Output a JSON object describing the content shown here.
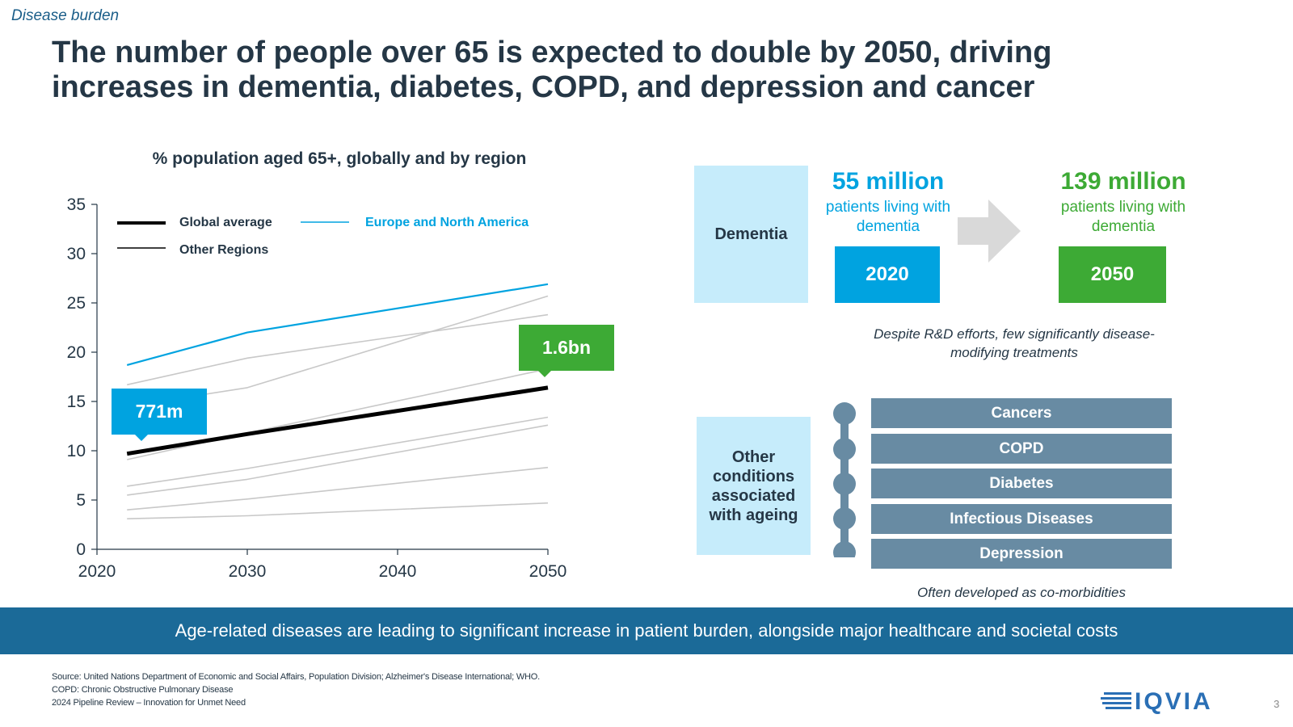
{
  "section_tag": "Disease burden",
  "title": "The number of people over 65 is expected to double by 2050, driving increases in dementia, diabetes, COPD, and depression and cancer",
  "chart_data": {
    "type": "line",
    "title": "% population aged 65+, globally and by region",
    "x": [
      2022,
      2030,
      2050
    ],
    "xticks": [
      "2020",
      "2030",
      "2040",
      "2050"
    ],
    "yticks": [
      "0",
      "5",
      "10",
      "15",
      "20",
      "25",
      "30",
      "35"
    ],
    "xlim": [
      2020,
      2050
    ],
    "ylim": [
      0,
      35
    ],
    "legend": [
      {
        "label": "Global average",
        "color": "#000000"
      },
      {
        "label": "Europe and North America",
        "color": "#00a3e0"
      },
      {
        "label": "Other Regions",
        "color": "#000000"
      }
    ],
    "series": [
      {
        "name": "Europe and North America",
        "color": "#00a3e0",
        "values": [
          18.7,
          22.0,
          26.9
        ]
      },
      {
        "name": "Global average",
        "color": "#000000",
        "values": [
          9.7,
          11.7,
          16.4
        ]
      },
      {
        "color": "#c8c8c8",
        "values": [
          16.7,
          19.4,
          23.8
        ]
      },
      {
        "color": "#c8c8c8",
        "values": [
          14.5,
          16.4,
          25.7
        ]
      },
      {
        "color": "#c8c8c8",
        "values": [
          9.1,
          11.8,
          18.3
        ]
      },
      {
        "color": "#c8c8c8",
        "values": [
          6.4,
          8.2,
          13.4
        ]
      },
      {
        "color": "#c8c8c8",
        "values": [
          5.5,
          7.1,
          12.6
        ]
      },
      {
        "color": "#c8c8c8",
        "values": [
          4.0,
          5.1,
          8.3
        ]
      },
      {
        "color": "#c8c8c8",
        "values": [
          3.1,
          3.4,
          4.7
        ]
      }
    ],
    "annotations": [
      {
        "text": "771m",
        "color": "#00a3e0"
      },
      {
        "text": "1.6bn",
        "color": "#3daa35"
      }
    ]
  },
  "dementia": {
    "label": "Dementia",
    "now_value": "55 million",
    "now_desc": "patients living with dementia",
    "now_year": "2020",
    "future_value": "139 million",
    "future_desc": "patients living with dementia",
    "future_year": "2050",
    "note": "Despite R&D efforts, few significantly disease-modifying treatments",
    "colors": {
      "now": "#00a3e0",
      "future": "#3daa35"
    }
  },
  "other_conditions": {
    "label": "Other conditions associated with ageing",
    "items": [
      "Cancers",
      "COPD",
      "Diabetes",
      "Infectious Diseases",
      "Depression"
    ],
    "note": "Often developed as co-morbidities"
  },
  "banner": "Age-related diseases are leading to significant increase in patient burden, alongside major healthcare and societal costs",
  "footnotes": {
    "source": "Source: United Nations Department of Economic and Social Affairs, Population Division; Alzheimer's Disease International; WHO.",
    "abbrev": "COPD: Chronic Obstructive Pulmonary Disease",
    "doc": "2024 Pipeline Review – Innovation for Unmet Need"
  },
  "logo": "IQVIA",
  "page_number": "3"
}
